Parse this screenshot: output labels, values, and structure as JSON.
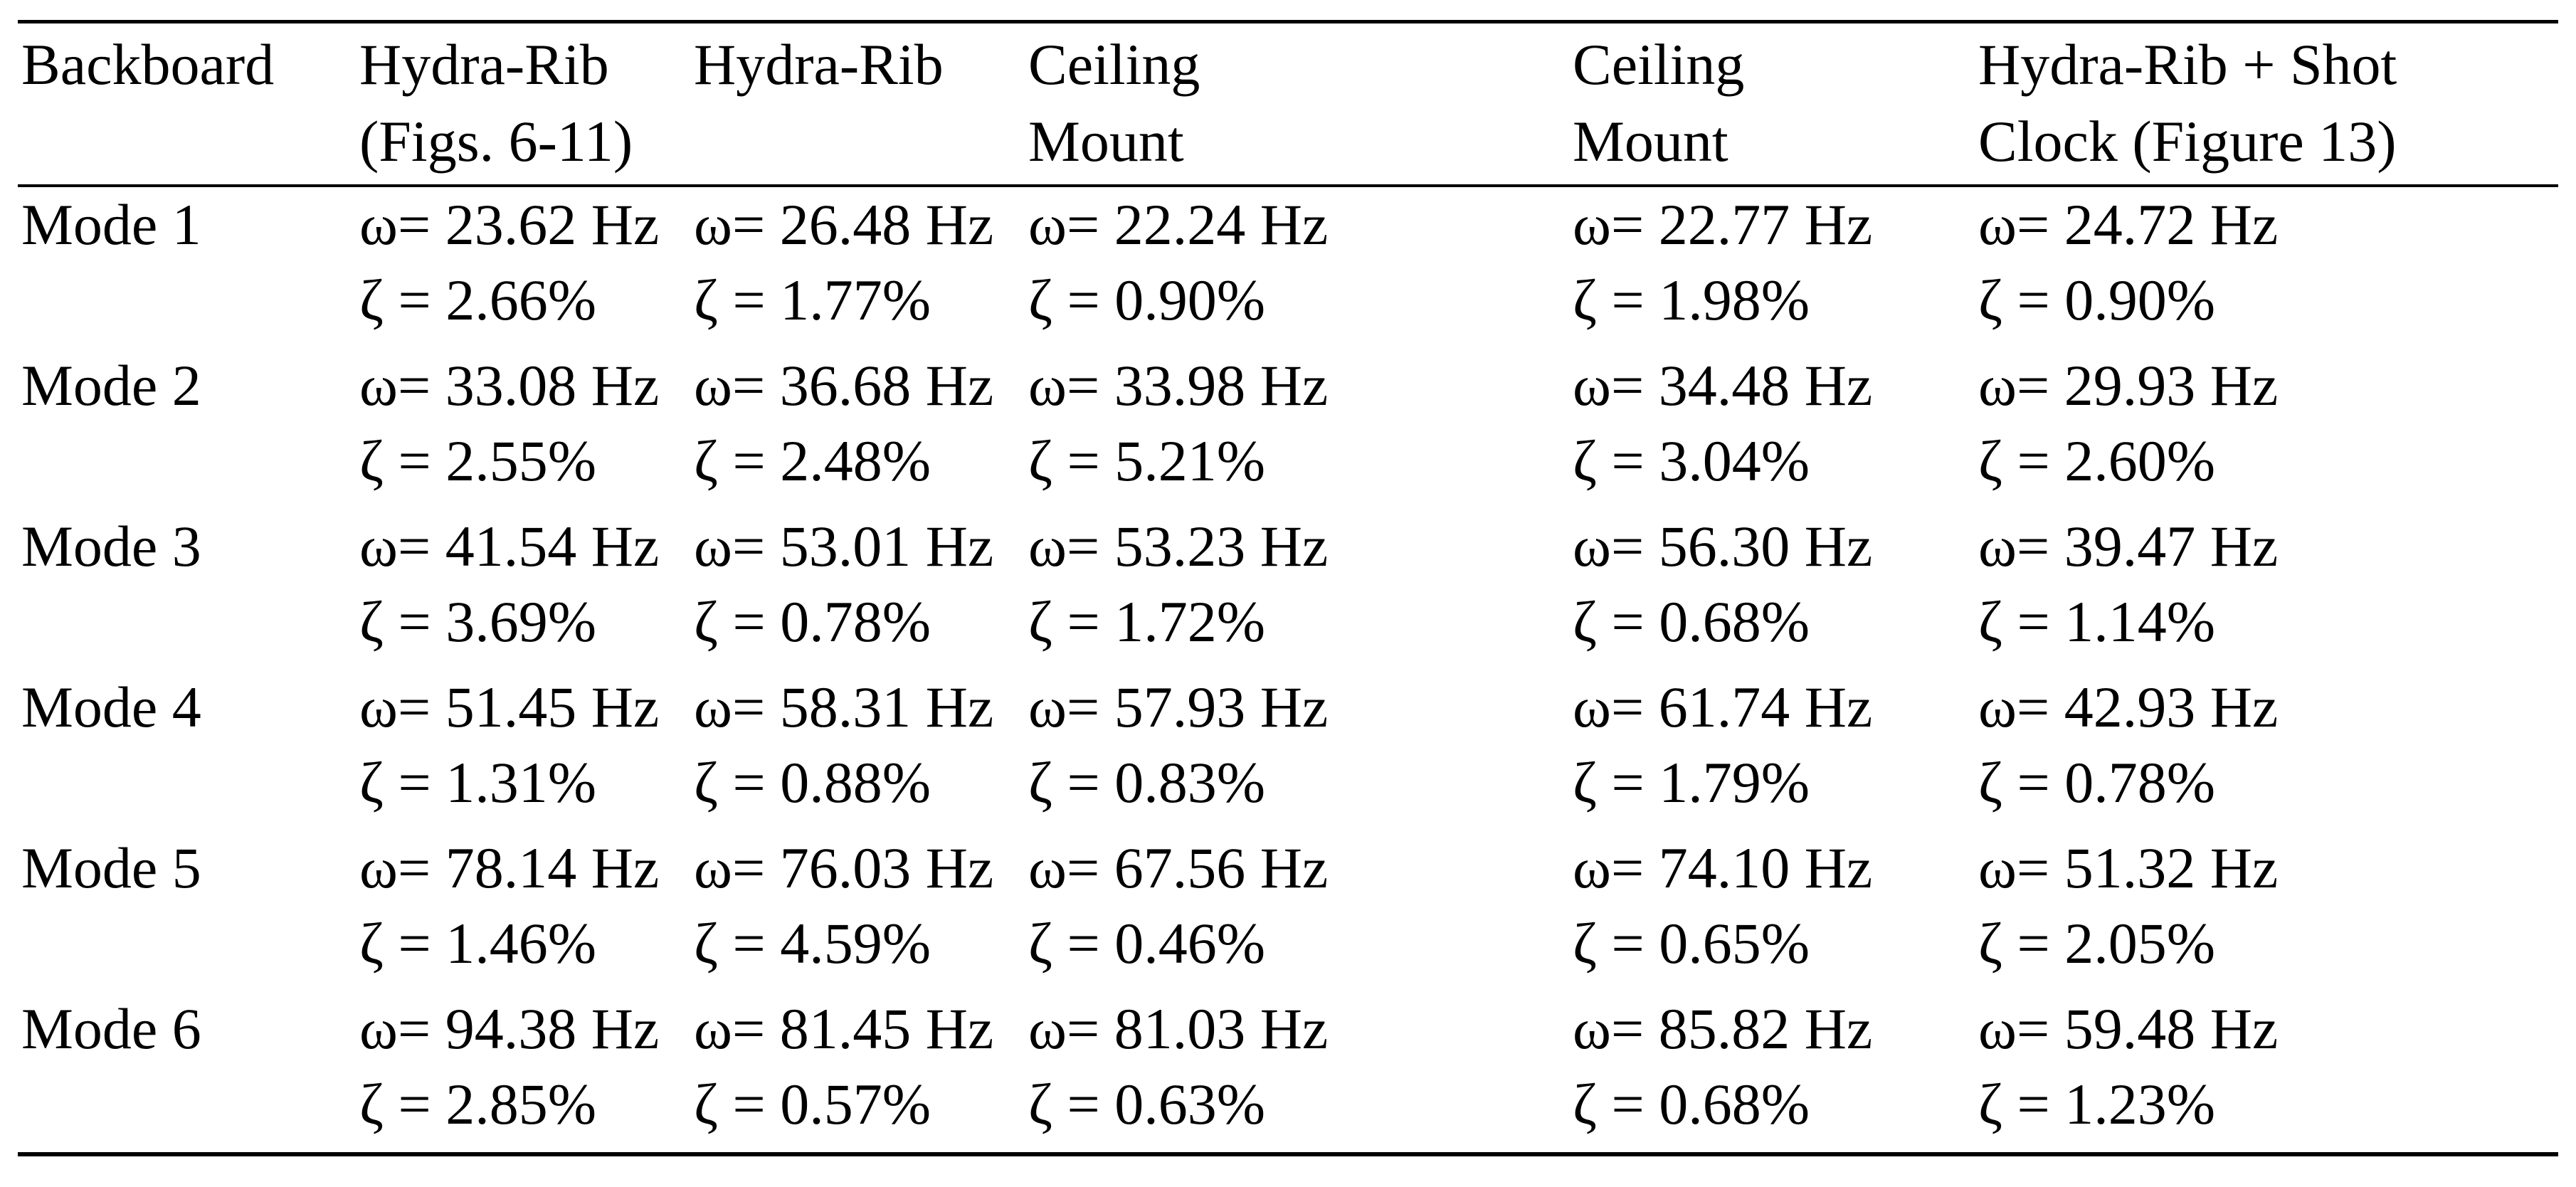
{
  "table": {
    "header": [
      {
        "lines": [
          "Backboard"
        ]
      },
      {
        "lines": [
          "Hydra-Rib",
          "(Figs. 6-11)"
        ]
      },
      {
        "lines": [
          "Hydra-Rib"
        ]
      },
      {
        "lines": [
          "Ceiling",
          "Mount"
        ]
      },
      {
        "lines": [
          "Ceiling",
          "Mount"
        ]
      },
      {
        "lines": [
          "Hydra-Rib + Shot",
          "Clock (Figure 13)"
        ]
      }
    ],
    "rows": [
      {
        "mode": "Mode 1",
        "cells": [
          {
            "omega": "ω= 23.62 Hz",
            "zeta": "ζ = 2.66%"
          },
          {
            "omega": "ω= 26.48 Hz",
            "zeta": "ζ = 1.77%"
          },
          {
            "omega": "ω= 22.24 Hz",
            "zeta": "ζ = 0.90%"
          },
          {
            "omega": "ω= 22.77 Hz",
            "zeta": "ζ = 1.98%"
          },
          {
            "omega": "ω= 24.72 Hz",
            "zeta": "ζ = 0.90%"
          }
        ]
      },
      {
        "mode": "Mode 2",
        "cells": [
          {
            "omega": "ω= 33.08 Hz",
            "zeta": "ζ = 2.55%"
          },
          {
            "omega": "ω= 36.68 Hz",
            "zeta": "ζ = 2.48%"
          },
          {
            "omega": "ω= 33.98 Hz",
            "zeta": "ζ = 5.21%"
          },
          {
            "omega": "ω= 34.48 Hz",
            "zeta": "ζ = 3.04%"
          },
          {
            "omega": "ω= 29.93 Hz",
            "zeta": "ζ = 2.60%"
          }
        ]
      },
      {
        "mode": "Mode 3",
        "cells": [
          {
            "omega": "ω= 41.54 Hz",
            "zeta": "ζ = 3.69%"
          },
          {
            "omega": "ω= 53.01 Hz",
            "zeta": "ζ = 0.78%"
          },
          {
            "omega": "ω= 53.23 Hz",
            "zeta": "ζ = 1.72%"
          },
          {
            "omega": "ω= 56.30 Hz",
            "zeta": "ζ = 0.68%"
          },
          {
            "omega": "ω= 39.47 Hz",
            "zeta": "ζ = 1.14%"
          }
        ]
      },
      {
        "mode": "Mode 4",
        "cells": [
          {
            "omega": "ω= 51.45 Hz",
            "zeta": "ζ = 1.31%"
          },
          {
            "omega": "ω= 58.31 Hz",
            "zeta": "ζ = 0.88%"
          },
          {
            "omega": "ω= 57.93 Hz",
            "zeta": "ζ = 0.83%"
          },
          {
            "omega": "ω= 61.74 Hz",
            "zeta": "ζ = 1.79%"
          },
          {
            "omega": "ω= 42.93 Hz",
            "zeta": "ζ = 0.78%"
          }
        ]
      },
      {
        "mode": "Mode 5",
        "cells": [
          {
            "omega": "ω= 78.14 Hz",
            "zeta": "ζ = 1.46%"
          },
          {
            "omega": "ω= 76.03 Hz",
            "zeta": "ζ = 4.59%"
          },
          {
            "omega": "ω= 67.56 Hz",
            "zeta": "ζ = 0.46%"
          },
          {
            "omega": "ω= 74.10 Hz",
            "zeta": "ζ = 0.65%"
          },
          {
            "omega": "ω= 51.32 Hz",
            "zeta": "ζ = 2.05%"
          }
        ]
      },
      {
        "mode": "Mode 6",
        "cells": [
          {
            "omega": "ω= 94.38 Hz",
            "zeta": "ζ = 2.85%"
          },
          {
            "omega": "ω= 81.45 Hz",
            "zeta": "ζ = 0.57%"
          },
          {
            "omega": "ω= 81.03 Hz",
            "zeta": "ζ = 0.63%"
          },
          {
            "omega": "ω= 85.82 Hz",
            "zeta": "ζ = 0.68%"
          },
          {
            "omega": "ω= 59.48 Hz",
            "zeta": "ζ = 1.23%"
          }
        ]
      }
    ]
  }
}
